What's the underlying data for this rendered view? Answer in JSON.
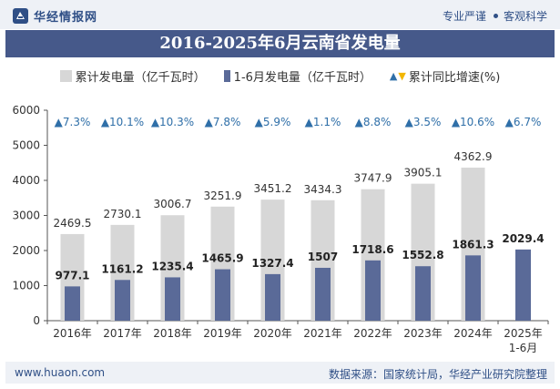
{
  "header": {
    "brand_name": "华经情报网",
    "tagline_left": "专业严谨",
    "tagline_right": "客观科学"
  },
  "title": "2016-2025年6月云南省发电量",
  "legend": {
    "annual": "累计发电量（亿千瓦时）",
    "h1": "1-6月发电量（亿千瓦时）",
    "growth": "累计同比增速(%)"
  },
  "colors": {
    "annual_bar": "#d7d7d7",
    "h1_bar": "#5a6a98",
    "growth_up": "#2f6fa8",
    "growth_down": "#f2b600",
    "title_bg": "#46598a"
  },
  "footer": {
    "url": "www.huaon.com",
    "source": "数据来源：国家统计局，华经产业研究院整理"
  },
  "chart_data": {
    "type": "bar",
    "categories": [
      "2016年",
      "2017年",
      "2018年",
      "2019年",
      "2020年",
      "2021年",
      "2022年",
      "2023年",
      "2024年",
      "2025年\n1-6月"
    ],
    "series": [
      {
        "name": "累计发电量（亿千瓦时）",
        "values": [
          2469.5,
          2730.1,
          3006.7,
          3251.9,
          3451.2,
          3434.3,
          3747.9,
          3905.1,
          4362.9,
          null
        ]
      },
      {
        "name": "1-6月发电量（亿千瓦时）",
        "values": [
          977.1,
          1161.2,
          1235.4,
          1465.9,
          1327.4,
          1507,
          1718.6,
          1552.8,
          1861.3,
          2029.4
        ]
      }
    ],
    "growth": {
      "name": "累计同比增速(%)",
      "values": [
        7.3,
        10.1,
        10.3,
        7.8,
        5.9,
        1.1,
        8.8,
        3.5,
        10.6,
        6.7
      ],
      "labels": [
        "▲7.3%",
        "▲10.1%",
        "▲10.3%",
        "▲7.8%",
        "▲5.9%",
        "▲1.1%",
        "▲8.8%",
        "▲3.5%",
        "▲10.6%",
        "▲6.7%"
      ]
    },
    "ylim": [
      0,
      6000
    ],
    "yticks": [
      0,
      1000,
      2000,
      3000,
      4000,
      5000,
      6000
    ],
    "grid": false
  }
}
